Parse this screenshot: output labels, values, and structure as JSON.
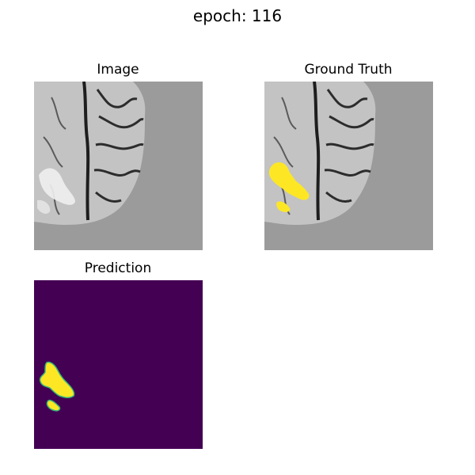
{
  "figure": {
    "title": "epoch: 116"
  },
  "panels": {
    "image": {
      "title": "Image"
    },
    "ground_truth": {
      "title": "Ground Truth"
    },
    "prediction": {
      "title": "Prediction"
    }
  },
  "colors": {
    "background": "#ffffff",
    "scan_background": "#9b9b9b",
    "tissue_light": "#c9c9c9",
    "tissue_dark": "#3a3a3a",
    "lesion_bright": "#f2f2f2",
    "mask_yellow": "#fde725",
    "mask_edge": "#35b779",
    "prediction_background": "#440154"
  }
}
